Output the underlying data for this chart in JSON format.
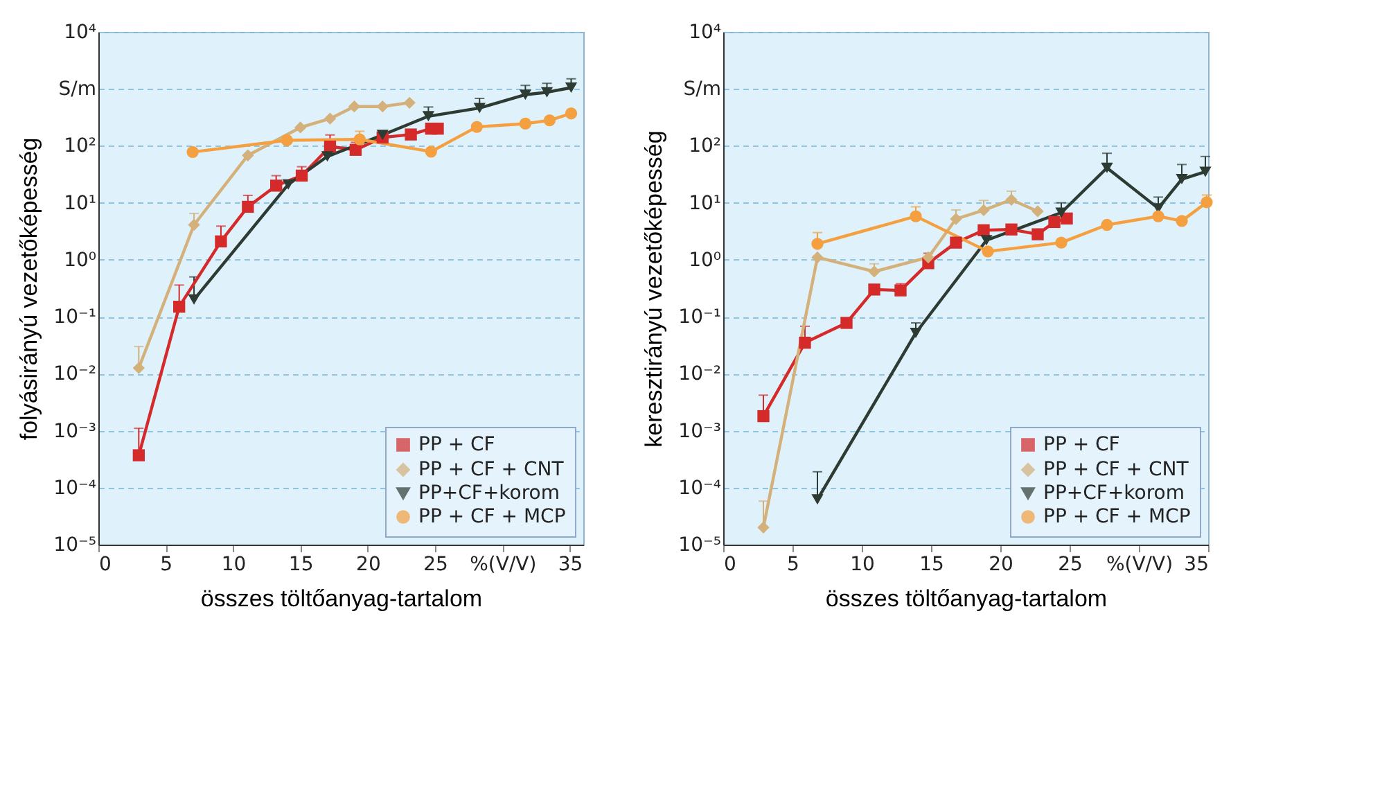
{
  "chart_data": [
    {
      "type": "line",
      "xlabel": "összes töltőanyag-tartalom",
      "ylabel": "folyásirányú vezetőképesség",
      "log": "y",
      "grid": "y",
      "legend": "bottom right",
      "line_style": "solid",
      "xlim": [
        0,
        36
      ],
      "xticks": [
        0,
        5,
        10,
        15,
        20,
        25,
        {
          "value": 30,
          "label": "%(V/V)"
        },
        35
      ],
      "ylim": [
        1e-05,
        10000
      ],
      "yticks": [
        {
          "value": 1e-05,
          "label": "10⁻⁵"
        },
        {
          "value": 0.0001,
          "label": "10⁻⁴"
        },
        {
          "value": 0.001,
          "label": "10⁻³"
        },
        {
          "value": 0.01,
          "label": "10⁻²"
        },
        {
          "value": 0.1,
          "label": "10⁻¹"
        },
        {
          "value": 1,
          "label": "10⁰"
        },
        {
          "value": 10,
          "label": "10¹"
        },
        {
          "value": 100,
          "label": "10²"
        },
        {
          "value": 1000,
          "label": "S/m"
        },
        {
          "value": 10000,
          "label": "10⁴"
        }
      ],
      "series": [
        {
          "name": "PP + CF",
          "color": "#d42a2a",
          "marker": "square",
          "x": [
            3.0,
            6.0,
            9.1,
            11.1,
            13.2,
            15.1,
            17.2,
            19.1,
            21.1,
            23.2,
            24.7,
            25.2
          ],
          "values": [
            0.00037,
            0.15,
            2.1,
            8.5,
            20,
            30,
            97,
            85,
            140,
            158,
            200,
            200
          ],
          "errors": [
            [
              0.00037,
              0.0011
            ],
            [
              0.15,
              0.36
            ],
            [
              2.1,
              3.9
            ],
            [
              8.5,
              13.5
            ],
            [
              20,
              30
            ],
            [
              30,
              43
            ],
            [
              97,
              155
            ],
            [
              85,
              115
            ],
            null,
            null,
            null,
            [
              200,
              245
            ]
          ]
        },
        {
          "name": "PP + CF + CNT",
          "color": "#d4b07a",
          "marker": "diamond",
          "x": [
            3.0,
            7.1,
            11.1,
            15.0,
            17.2,
            19.0,
            21.1,
            23.1
          ],
          "values": [
            0.0126,
            4.1,
            68,
            210,
            300,
            490,
            490,
            570
          ],
          "errors": [
            [
              0.0126,
              0.03
            ],
            [
              4.1,
              6.5
            ],
            null,
            null,
            null,
            null,
            null,
            null
          ]
        },
        {
          "name": "PP+CF+korom",
          "color": "#2e3b33",
          "marker": "triangle",
          "x": [
            7.1,
            14.1,
            17.0,
            21.1,
            24.5,
            28.3,
            31.7,
            33.3,
            35.1
          ],
          "values": [
            0.2,
            21,
            65,
            155,
            330,
            460,
            790,
            870,
            1050
          ],
          "errors": [
            [
              0.2,
              0.5
            ],
            null,
            null,
            null,
            [
              330,
              480
            ],
            [
              460,
              680
            ],
            [
              790,
              1150
            ],
            [
              870,
              1250
            ],
            [
              1050,
              1500
            ]
          ]
        },
        {
          "name": "PP + CF + MCP",
          "color": "#f4a040",
          "marker": "circle",
          "x": [
            7.0,
            14.0,
            19.4,
            24.7,
            28.1,
            31.7,
            33.5,
            35.1
          ],
          "values": [
            78,
            125,
            130,
            79,
            215,
            245,
            280,
            370
          ],
          "errors": [
            null,
            null,
            [
              130,
              180
            ],
            null,
            null,
            null,
            null,
            null
          ]
        }
      ]
    },
    {
      "type": "line",
      "xlabel": "összes töltőanyag-tartalom",
      "ylabel": "keresztirányú vezetőképesség",
      "log": "y",
      "grid": "y",
      "legend": "bottom right",
      "line_style": "solid",
      "xlim": [
        0,
        35
      ],
      "xticks": [
        0,
        5,
        10,
        15,
        20,
        25,
        {
          "value": 30,
          "label": "%(V/V)"
        },
        35
      ],
      "ylim": [
        1e-05,
        10000
      ],
      "yticks": [
        {
          "value": 1e-05,
          "label": "10⁻⁵"
        },
        {
          "value": 0.0001,
          "label": "10⁻⁴"
        },
        {
          "value": 0.001,
          "label": "10⁻³"
        },
        {
          "value": 0.01,
          "label": "10⁻²"
        },
        {
          "value": 0.1,
          "label": "10⁻¹"
        },
        {
          "value": 1,
          "label": "10⁰"
        },
        {
          "value": 10,
          "label": "10¹"
        },
        {
          "value": 100,
          "label": "10²"
        },
        {
          "value": 1000,
          "label": "S/m"
        },
        {
          "value": 10000,
          "label": "10⁴"
        }
      ],
      "series": [
        {
          "name": "PP + CF",
          "color": "#d42a2a",
          "marker": "square",
          "x": [
            2.9,
            5.9,
            8.9,
            10.9,
            12.8,
            14.8,
            16.8,
            18.8,
            20.8,
            22.7,
            23.9,
            24.8
          ],
          "values": [
            0.0018,
            0.035,
            0.078,
            0.3,
            0.29,
            0.87,
            2.0,
            3.3,
            3.4,
            2.8,
            4.6,
            5.3
          ],
          "errors": [
            [
              0.0018,
              0.0042
            ],
            [
              0.035,
              0.068
            ],
            null,
            null,
            [
              0.29,
              0.38
            ],
            [
              0.87,
              1.3
            ],
            null,
            null,
            null,
            null,
            null,
            [
              5.3,
              6.5
            ]
          ]
        },
        {
          "name": "PP + CF + CNT",
          "color": "#d4b07a",
          "marker": "diamond",
          "x": [
            2.9,
            6.8,
            10.9,
            14.8,
            16.8,
            18.8,
            20.8,
            22.7
          ],
          "values": [
            2e-05,
            1.1,
            0.62,
            1.1,
            5.2,
            7.4,
            11.3,
            7.1
          ],
          "errors": [
            [
              2e-05,
              5.8e-05
            ],
            null,
            [
              0.62,
              0.85
            ],
            null,
            [
              5.2,
              7.5
            ],
            [
              7.4,
              11
            ],
            [
              11.3,
              16
            ],
            null
          ]
        },
        {
          "name": "PP+CF+korom",
          "color": "#2e3b33",
          "marker": "triangle",
          "x": [
            6.8,
            13.9,
            19.0,
            24.4,
            27.7,
            31.4,
            33.1,
            34.8
          ],
          "values": [
            6.2e-05,
            0.052,
            2.2,
            6.7,
            41,
            8.0,
            26,
            35
          ],
          "errors": [
            [
              6.2e-05,
              0.00019
            ],
            [
              0.052,
              0.078
            ],
            null,
            [
              6.7,
              10
            ],
            [
              41,
              74
            ],
            [
              8.0,
              12.6
            ],
            [
              26,
              47
            ],
            [
              35,
              65
            ]
          ]
        },
        {
          "name": "PP + CF + MCP",
          "color": "#f4a040",
          "marker": "circle",
          "x": [
            6.8,
            13.9,
            19.1,
            24.4,
            27.7,
            31.4,
            33.1,
            34.9
          ],
          "values": [
            1.9,
            5.8,
            1.4,
            2.0,
            4.1,
            5.8,
            4.8,
            10.2
          ],
          "errors": [
            [
              1.9,
              3.0
            ],
            [
              5.8,
              8.5
            ],
            null,
            null,
            null,
            null,
            null,
            [
              10.2,
              13.7
            ]
          ]
        }
      ]
    }
  ]
}
